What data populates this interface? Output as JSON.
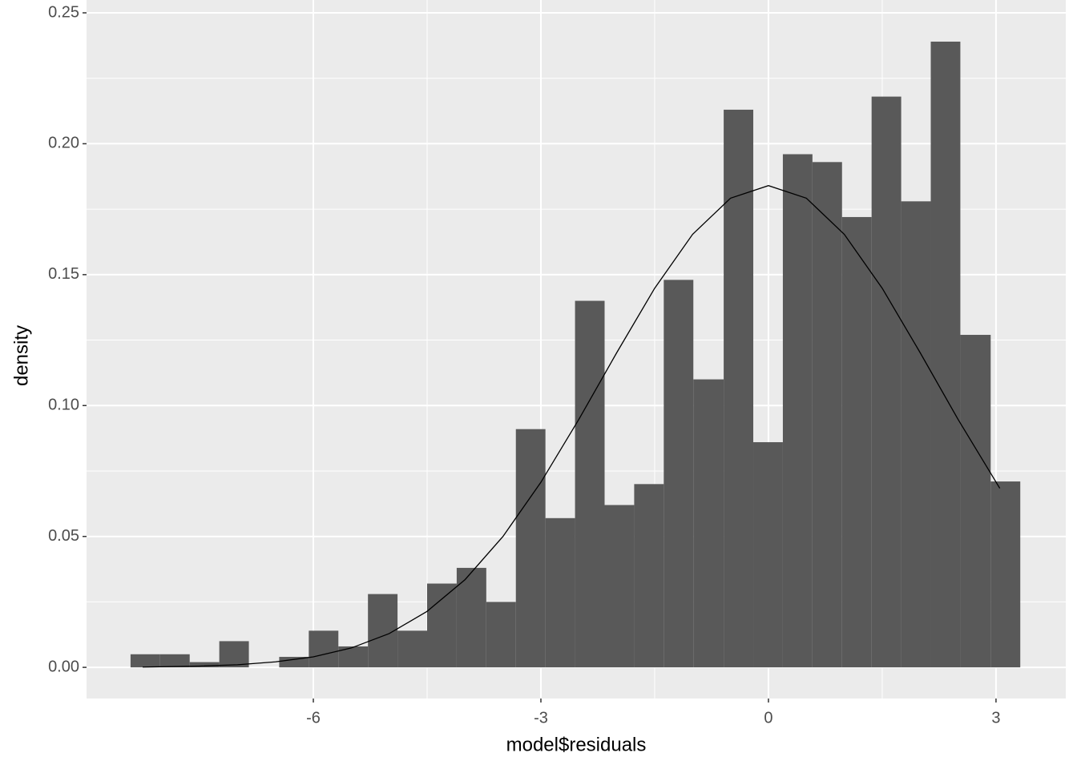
{
  "chart_data": {
    "type": "histogram",
    "xlabel": "model$residuals",
    "ylabel": "density",
    "bins": [
      -8.41,
      -8.02,
      -7.63,
      -7.24,
      -6.85,
      -6.45,
      -6.06,
      -5.67,
      -5.28,
      -4.89,
      -4.5,
      -4.11,
      -3.72,
      -3.33,
      -2.94,
      -2.55,
      -2.16,
      -1.77,
      -1.38,
      -0.99,
      -0.59,
      -0.2,
      0.19,
      0.58,
      0.97,
      1.36,
      1.75,
      2.14,
      2.53,
      2.93,
      3.32
    ],
    "values": [
      0.005,
      0.005,
      0.002,
      0.01,
      0,
      0.004,
      0.014,
      0.008,
      0.028,
      0.014,
      0.032,
      0.038,
      0.025,
      0.091,
      0.057,
      0.14,
      0.062,
      0.07,
      0.148,
      0.11,
      0.213,
      0.086,
      0.196,
      0.193,
      0.172,
      0.218,
      0.178,
      0.239,
      0.127,
      0.071
    ],
    "color": "#595959",
    "curve": {
      "color": "#000000",
      "x": [
        -8.25,
        -7.5,
        -7,
        -6.5,
        -6,
        -5.5,
        -5,
        -4.5,
        -4,
        -3.5,
        -3,
        -2.5,
        -2,
        -1.5,
        -1,
        -0.5,
        0,
        0.5,
        1,
        1.5,
        2,
        2.5,
        3.05
      ],
      "values": [
        0.0001,
        0.0005,
        0.001,
        0.0021,
        0.004,
        0.0074,
        0.0129,
        0.0214,
        0.0335,
        0.05,
        0.0707,
        0.0947,
        0.1202,
        0.1448,
        0.1654,
        0.1792,
        0.184,
        0.1792,
        0.1654,
        0.1448,
        0.1202,
        0.0947,
        0.0684
      ]
    },
    "xlim": [
      -8.99,
      3.92
    ],
    "ylim": [
      -0.0119,
      0.2549
    ],
    "xticks": [
      -6,
      -3,
      0,
      3
    ],
    "yticks": [
      {
        "value": 0,
        "label": "0.00"
      },
      {
        "value": 0.05,
        "label": "0.05"
      },
      {
        "value": 0.1,
        "label": "0.10"
      },
      {
        "value": 0.15,
        "label": "0.15"
      },
      {
        "value": 0.2,
        "label": "0.20"
      },
      {
        "value": 0.25,
        "label": "0.25"
      }
    ],
    "grid": true
  }
}
